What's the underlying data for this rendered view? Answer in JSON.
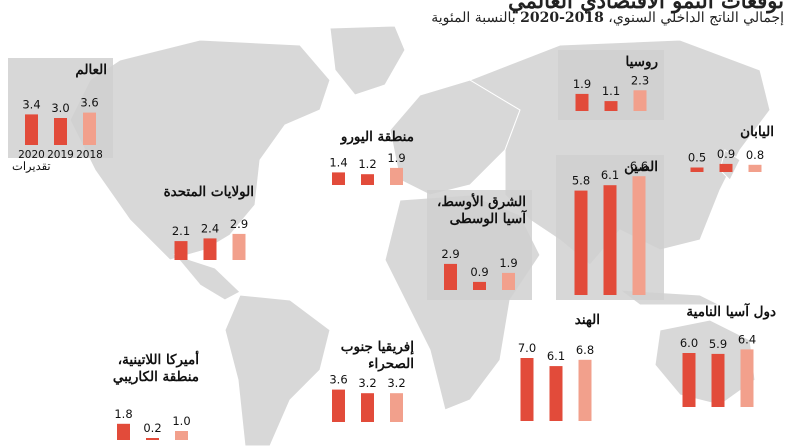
{
  "title": "توقعات النمو الاقتصادي العالمي",
  "subtitle": {
    "prefix": "إجمالي الناتج الداخلي السنوي، ",
    "years": "2018-2020",
    "suffix": " بالنسبة المئوية"
  },
  "colors": {
    "y2020": "#e24b3a",
    "y2019": "#e24b3a",
    "y2018": "#f2a08c",
    "land": "#d8d8d8",
    "ocean": "#ffffff",
    "box": "#d0d0d0"
  },
  "world_box": {
    "years": [
      "2020",
      "2019",
      "2018"
    ],
    "note": "تقديرات"
  },
  "chart_data": {
    "type": "bar",
    "series_order": [
      "2020",
      "2019",
      "2018"
    ],
    "regions": [
      {
        "id": "world",
        "name": "العالم",
        "values": [
          3.4,
          3.0,
          3.6
        ]
      },
      {
        "id": "russia",
        "name": "روسيا",
        "values": [
          1.9,
          1.1,
          2.3
        ]
      },
      {
        "id": "euro",
        "name": "منطقة اليورو",
        "values": [
          1.4,
          1.2,
          1.9
        ]
      },
      {
        "id": "japan",
        "name": "اليابان",
        "values": [
          0.5,
          0.9,
          0.8
        ]
      },
      {
        "id": "usa",
        "name": "الولايات المتحدة",
        "values": [
          2.1,
          2.4,
          2.9
        ]
      },
      {
        "id": "mideast",
        "name": "الشرق الأوسط،\nآسيا الوسطى",
        "values": [
          2.9,
          0.9,
          1.9
        ]
      },
      {
        "id": "china",
        "name": "الصين",
        "values": [
          5.8,
          6.1,
          6.6
        ]
      },
      {
        "id": "asia",
        "name": "دول آسيا النامية",
        "values": [
          6.0,
          5.9,
          6.4
        ]
      },
      {
        "id": "india",
        "name": "الهند",
        "values": [
          7.0,
          6.1,
          6.8
        ]
      },
      {
        "id": "africa",
        "name": "إفريقيا جنوب\nالصحراء",
        "values": [
          3.6,
          3.2,
          3.2
        ]
      },
      {
        "id": "latam",
        "name": "أميركا اللاتينية،\nمنطقة الكاريبي",
        "values": [
          1.8,
          0.2,
          1.0
        ]
      }
    ]
  }
}
